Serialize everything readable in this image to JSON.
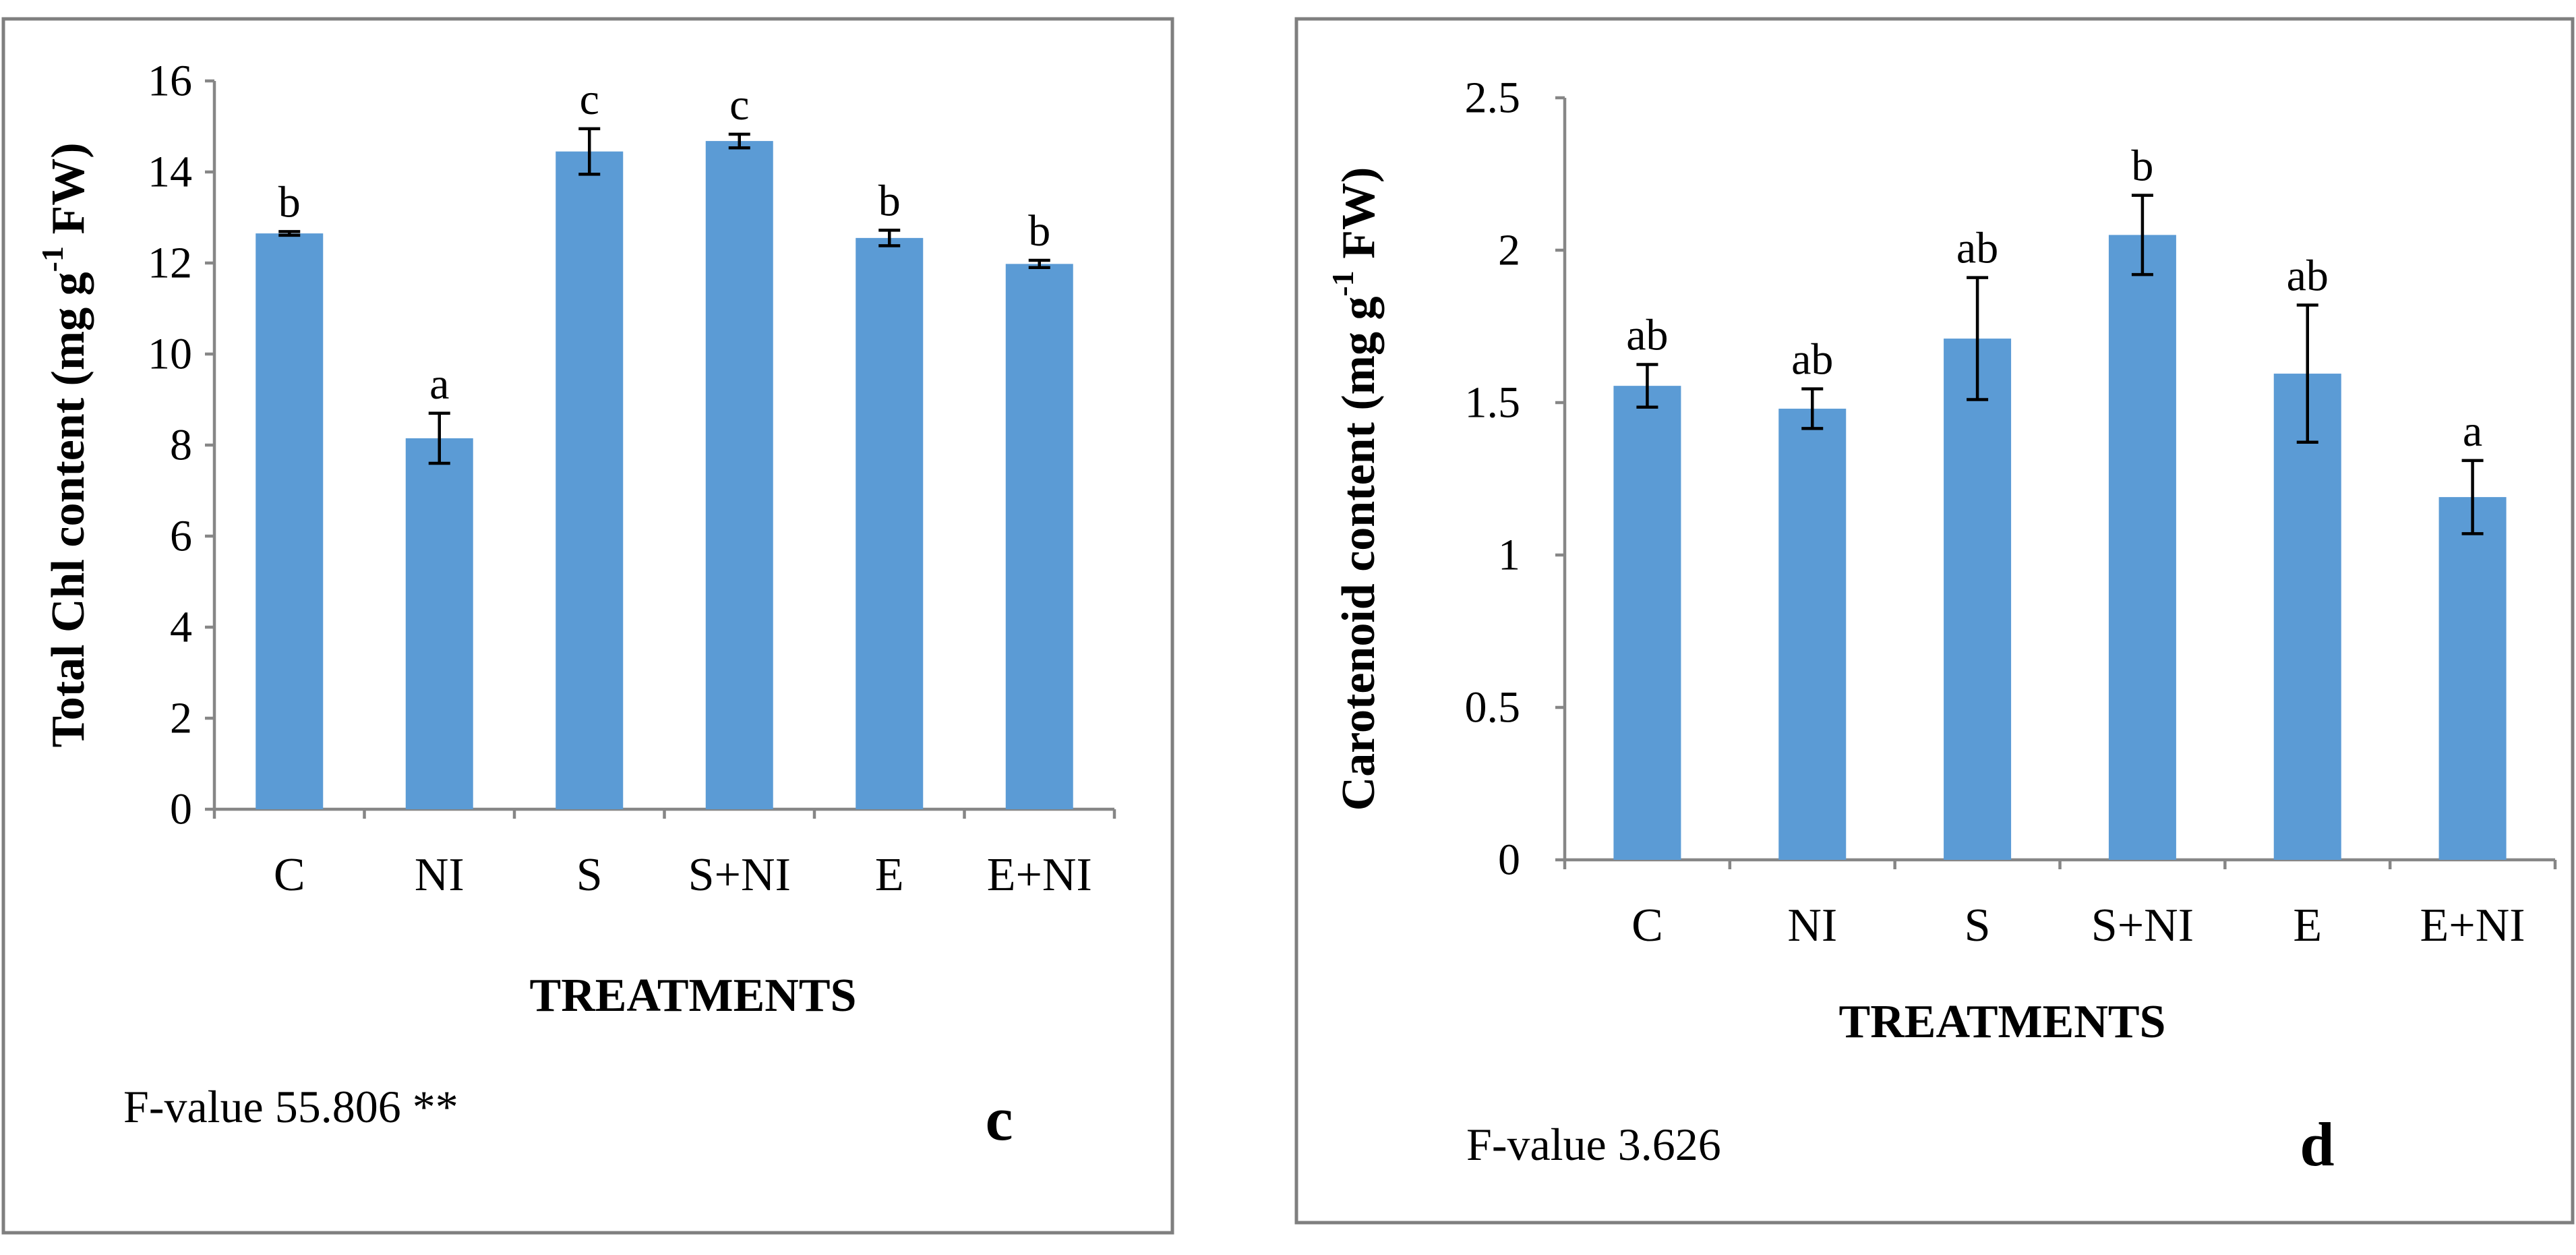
{
  "colors": {
    "bar": "#5b9bd5",
    "axis": "#868686",
    "border": "#7f7f7f",
    "text": "#000000",
    "error_bar": "#000000"
  },
  "chart_data": [
    {
      "type": "bar",
      "panel": "c",
      "title": "",
      "xlabel": "TREATMENTS",
      "ylabel_main": "Total Chl content (mg g",
      "ylabel_sup": "-1",
      "ylabel_tail": " FW)",
      "categories": [
        "C",
        "NI",
        "S",
        "S+NI",
        "E",
        "E+NI"
      ],
      "values": [
        12.65,
        8.15,
        14.45,
        14.68,
        12.55,
        11.98
      ],
      "errors": [
        0.04,
        0.55,
        0.5,
        0.15,
        0.17,
        0.08
      ],
      "significance": [
        "b",
        "a",
        "c",
        "c",
        "b",
        "b"
      ],
      "ylim": [
        0,
        16
      ],
      "yticks": [
        0,
        2,
        4,
        6,
        8,
        10,
        12,
        14,
        16
      ],
      "ytick_labels": [
        "0",
        "2",
        "4",
        "6",
        "8",
        "10",
        "12",
        "14",
        "16"
      ],
      "grid": false,
      "fvalue_text": "F-value 55.806 **"
    },
    {
      "type": "bar",
      "panel": "d",
      "title": "",
      "xlabel": "TREATMENTS",
      "ylabel_main": "Carotenoid content (mg g",
      "ylabel_sup": "-1",
      "ylabel_tail": " FW)",
      "categories": [
        "C",
        "NI",
        "S",
        "S+NI",
        "E",
        "E+NI"
      ],
      "values": [
        1.555,
        1.48,
        1.71,
        2.05,
        1.595,
        1.19
      ],
      "errors": [
        0.07,
        0.065,
        0.2,
        0.13,
        0.225,
        0.12
      ],
      "significance": [
        "ab",
        "ab",
        "ab",
        "b",
        "ab",
        "a"
      ],
      "ylim": [
        0,
        2.5
      ],
      "yticks": [
        0,
        0.5,
        1,
        1.5,
        2,
        2.5
      ],
      "ytick_labels": [
        "0",
        "0.5",
        "1",
        "1.5",
        "2",
        "2.5"
      ],
      "grid": false,
      "fvalue_text": "F-value 3.626"
    }
  ]
}
